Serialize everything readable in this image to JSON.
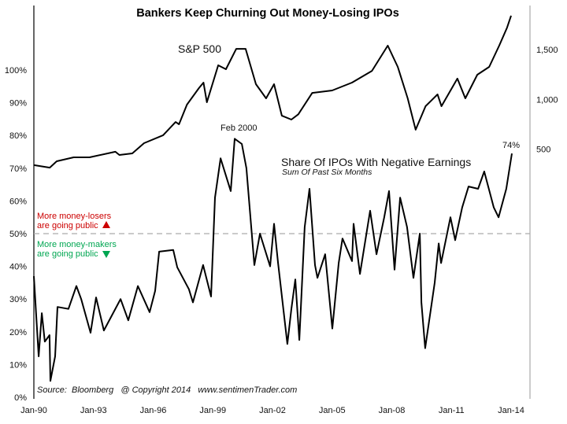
{
  "chart_data": {
    "type": "line",
    "title": "Bankers Keep Churning Out Money-Losing IPOs",
    "x_tick_labels": [
      "Jan-90",
      "Jan-93",
      "Jan-96",
      "Jan-99",
      "Jan-02",
      "Jan-05",
      "Jan-08",
      "Jan-11",
      "Jan-14"
    ],
    "x_range": [
      1990,
      2014
    ],
    "left_axis": {
      "range": [
        0,
        100
      ],
      "tick_labels": [
        "0%",
        "10%",
        "20%",
        "30%",
        "40%",
        "50%",
        "60%",
        "70%",
        "80%",
        "90%",
        "100%"
      ],
      "ticks": [
        0,
        10,
        20,
        30,
        40,
        50,
        60,
        70,
        80,
        90,
        100
      ]
    },
    "right_axis": {
      "range": [
        0,
        2000
      ],
      "tick_labels": [
        "500",
        "1,000",
        "1,500"
      ],
      "ticks": [
        500,
        1000,
        1500
      ]
    },
    "reference_line": {
      "value": 50,
      "style": "dashed",
      "color": "#aaaaaa"
    },
    "series": [
      {
        "name": "S&P 500",
        "axis": "right",
        "color": "#000000",
        "points": [
          [
            1990.0,
            340
          ],
          [
            1990.8,
            315
          ],
          [
            1991.15,
            379
          ],
          [
            1992.0,
            418
          ],
          [
            1992.8,
            418
          ],
          [
            1994.1,
            474
          ],
          [
            1994.3,
            442
          ],
          [
            1994.95,
            458
          ],
          [
            1995.54,
            560
          ],
          [
            1996.5,
            640
          ],
          [
            1997.13,
            773
          ],
          [
            1997.3,
            750
          ],
          [
            1997.7,
            947
          ],
          [
            1998.3,
            1113
          ],
          [
            1998.53,
            1168
          ],
          [
            1998.7,
            971
          ],
          [
            1999.27,
            1342
          ],
          [
            1999.66,
            1302
          ],
          [
            2000.18,
            1507
          ],
          [
            2000.65,
            1507
          ],
          [
            2001.17,
            1152
          ],
          [
            2001.68,
            1010
          ],
          [
            2002.08,
            1152
          ],
          [
            2002.47,
            836
          ],
          [
            2002.95,
            797
          ],
          [
            2003.3,
            850
          ],
          [
            2004.0,
            1065
          ],
          [
            2005.0,
            1089
          ],
          [
            2006.0,
            1168
          ],
          [
            2007.0,
            1286
          ],
          [
            2007.8,
            1539
          ],
          [
            2008.3,
            1326
          ],
          [
            2008.8,
            1010
          ],
          [
            2009.2,
            695
          ],
          [
            2009.7,
            931
          ],
          [
            2010.3,
            1050
          ],
          [
            2010.5,
            931
          ],
          [
            2011.3,
            1208
          ],
          [
            2011.7,
            1010
          ],
          [
            2012.3,
            1247
          ],
          [
            2012.9,
            1326
          ],
          [
            2013.4,
            1539
          ],
          [
            2013.8,
            1720
          ],
          [
            2014.0,
            1840
          ]
        ]
      },
      {
        "name": "Share Of IPOs With Negative Earnings",
        "axis": "left",
        "color": "#000000",
        "points": [
          [
            1990.0,
            37
          ],
          [
            1990.24,
            12.5
          ],
          [
            1990.4,
            25.7
          ],
          [
            1990.55,
            17
          ],
          [
            1990.79,
            19
          ],
          [
            1990.83,
            5
          ],
          [
            1991.07,
            12.5
          ],
          [
            1991.19,
            27.6
          ],
          [
            1991.74,
            27
          ],
          [
            1992.14,
            34
          ],
          [
            1992.38,
            30
          ],
          [
            1992.85,
            19.7
          ],
          [
            1993.13,
            30.5
          ],
          [
            1993.52,
            20.4
          ],
          [
            1994.36,
            30
          ],
          [
            1994.75,
            23.5
          ],
          [
            1995.23,
            34
          ],
          [
            1995.82,
            26
          ],
          [
            1996.1,
            32.5
          ],
          [
            1996.3,
            44.5
          ],
          [
            1997.01,
            45
          ],
          [
            1997.21,
            39.7
          ],
          [
            1997.8,
            33
          ],
          [
            1998.0,
            29
          ],
          [
            1998.51,
            40.4
          ],
          [
            1998.91,
            30.8
          ],
          [
            1999.11,
            61
          ],
          [
            1999.39,
            73
          ],
          [
            1999.9,
            63
          ],
          [
            2000.1,
            79
          ],
          [
            2000.46,
            77.4
          ],
          [
            2000.69,
            70
          ],
          [
            2001.09,
            40.4
          ],
          [
            2001.37,
            50
          ],
          [
            2001.88,
            40
          ],
          [
            2002.08,
            53
          ],
          [
            2002.28,
            41
          ],
          [
            2002.75,
            16.3
          ],
          [
            2002.95,
            27
          ],
          [
            2003.15,
            36
          ],
          [
            2003.35,
            17.5
          ],
          [
            2003.62,
            52
          ],
          [
            2003.86,
            63.7
          ],
          [
            2004.14,
            40.4
          ],
          [
            2004.26,
            36.5
          ],
          [
            2004.65,
            43.7
          ],
          [
            2005.01,
            21
          ],
          [
            2005.33,
            41
          ],
          [
            2005.52,
            48.5
          ],
          [
            2006.0,
            41.6
          ],
          [
            2006.08,
            53
          ],
          [
            2006.4,
            37.7
          ],
          [
            2006.91,
            57
          ],
          [
            2007.23,
            43.7
          ],
          [
            2007.62,
            55
          ],
          [
            2007.86,
            63
          ],
          [
            2008.14,
            39
          ],
          [
            2008.42,
            61
          ],
          [
            2008.77,
            52
          ],
          [
            2009.09,
            36.5
          ],
          [
            2009.41,
            50
          ],
          [
            2009.49,
            29
          ],
          [
            2009.68,
            15
          ],
          [
            2010.16,
            35
          ],
          [
            2010.36,
            47
          ],
          [
            2010.48,
            41
          ],
          [
            2010.95,
            55
          ],
          [
            2011.19,
            48
          ],
          [
            2011.54,
            58
          ],
          [
            2011.86,
            64.4
          ],
          [
            2012.34,
            63.7
          ],
          [
            2012.65,
            69
          ],
          [
            2013.13,
            58
          ],
          [
            2013.37,
            55
          ],
          [
            2013.76,
            63.7
          ],
          [
            2014.04,
            74.5
          ]
        ]
      }
    ],
    "annotations": {
      "sp500_label": "S&P 500",
      "peak_label": "Feb 2000",
      "ipo_label": "Share Of IPOs With Negative Earnings",
      "ipo_sublabel": "Sum Of Past Six Months",
      "last_value": "74%",
      "losers_line1": "More money-losers",
      "losers_line2": "are going public",
      "makers_line1": "More money-makers",
      "makers_line2": "are going public",
      "source": "Source:  Bloomberg   @ Copyright 2014   www.sentimenTrader.com"
    },
    "colors": {
      "losers": "#cc0000",
      "makers": "#00a651",
      "line": "#000000",
      "right_axis": "#aaaaaa"
    },
    "grid": false
  }
}
